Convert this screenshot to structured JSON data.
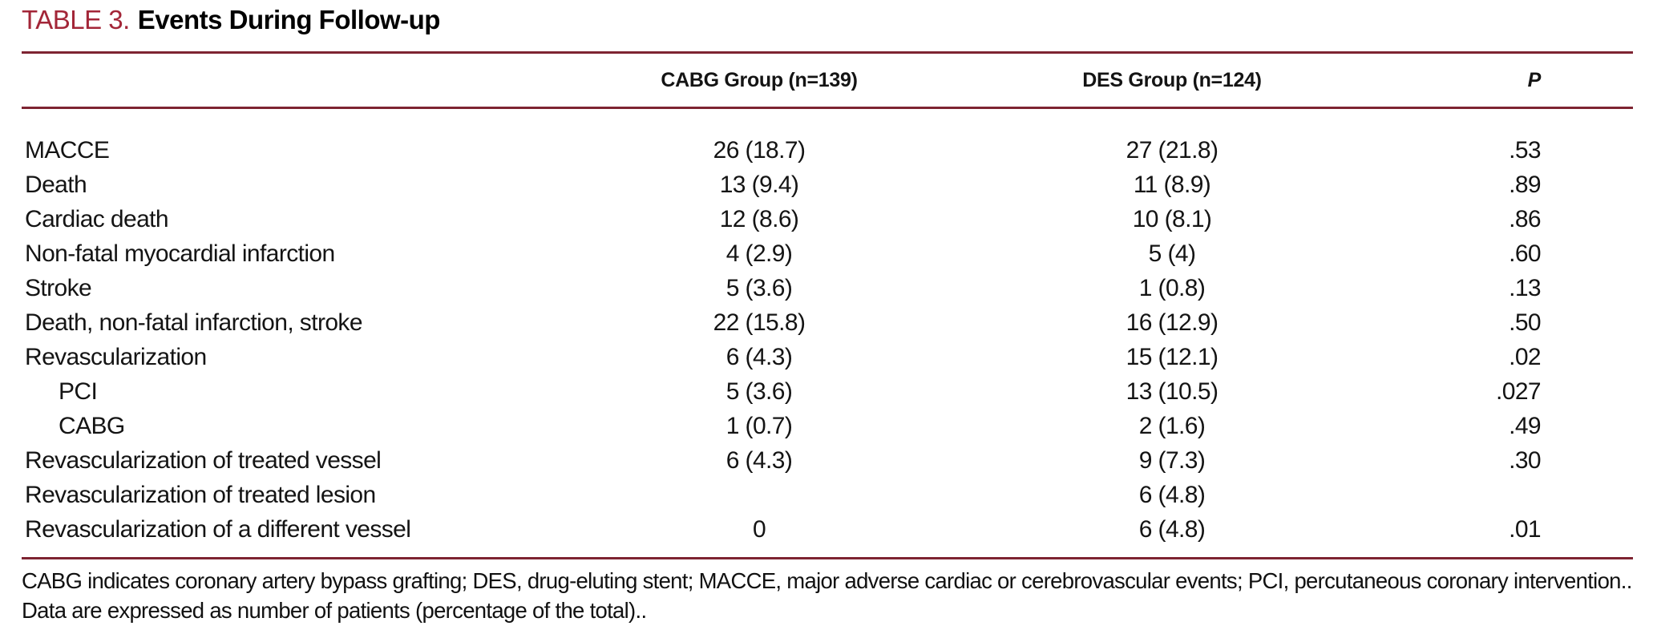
{
  "title": {
    "label": "TABLE 3.",
    "text": "Events During Follow-up"
  },
  "colors": {
    "title_red": "#A32638",
    "rule_red": "#7E2432",
    "text": "#141414"
  },
  "table": {
    "columns": [
      {
        "key": "label",
        "label": ""
      },
      {
        "key": "cabg",
        "label": "CABG Group (n=139)"
      },
      {
        "key": "des",
        "label": "DES Group (n=124)"
      },
      {
        "key": "p",
        "label": "P"
      }
    ],
    "rows": [
      {
        "label": "MACCE",
        "indent": false,
        "cabg": "26 (18.7)",
        "des": "27 (21.8)",
        "p": ".53"
      },
      {
        "label": "Death",
        "indent": false,
        "cabg": "13 (9.4)",
        "des": "11 (8.9)",
        "p": ".89"
      },
      {
        "label": "Cardiac death",
        "indent": false,
        "cabg": "12 (8.6)",
        "des": "10 (8.1)",
        "p": ".86"
      },
      {
        "label": "Non-fatal myocardial infarction",
        "indent": false,
        "cabg": "4 (2.9)",
        "des": "5 (4)",
        "p": ".60"
      },
      {
        "label": "Stroke",
        "indent": false,
        "cabg": "5 (3.6)",
        "des": "1 (0.8)",
        "p": ".13"
      },
      {
        "label": "Death, non-fatal infarction, stroke",
        "indent": false,
        "cabg": "22 (15.8)",
        "des": "16 (12.9)",
        "p": ".50"
      },
      {
        "label": "Revascularization",
        "indent": false,
        "cabg": "6 (4.3)",
        "des": "15 (12.1)",
        "p": ".02"
      },
      {
        "label": "PCI",
        "indent": true,
        "cabg": "5 (3.6)",
        "des": "13 (10.5)",
        "p": ".027"
      },
      {
        "label": "CABG",
        "indent": true,
        "cabg": "1 (0.7)",
        "des": "2 (1.6)",
        "p": ".49"
      },
      {
        "label": "Revascularization of treated vessel",
        "indent": false,
        "cabg": "6 (4.3)",
        "des": "9 (7.3)",
        "p": ".30"
      },
      {
        "label": "Revascularization of treated lesion",
        "indent": false,
        "cabg": "",
        "des": "6 (4.8)",
        "p": ""
      },
      {
        "label": "Revascularization of a different vessel",
        "indent": false,
        "cabg": "0",
        "des": "6 (4.8)",
        "p": ".01"
      }
    ]
  },
  "footnotes": [
    "CABG indicates coronary artery bypass grafting; DES, drug-eluting stent; MACCE, major adverse cardiac or cerebrovascular events; PCI, percutaneous coronary intervention..",
    "Data are expressed as number of patients (percentage of the total).."
  ]
}
